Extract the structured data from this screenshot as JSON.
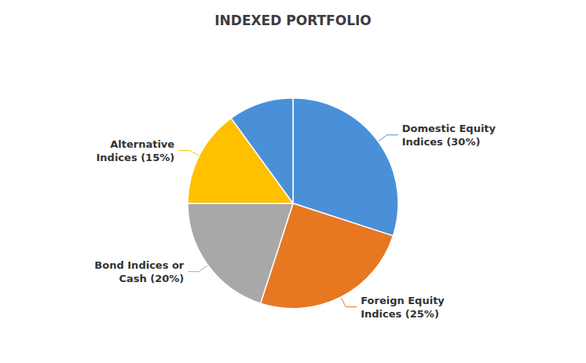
{
  "chart_data": {
    "type": "pie",
    "title": "INDEXED PORTFOLIO",
    "categories": [
      "Domestic Equity\nIndices (30%)",
      "Foreign Equity\nIndices (25%)",
      "Bond Indices or\nCash (20%)",
      "Alternative\nIndices (15%)",
      null
    ],
    "values": [
      30,
      25,
      20,
      15,
      10
    ],
    "colors": [
      "#4A90D9",
      "#E87722",
      "#A8A8A8",
      "#FFC000",
      "#4A90D9"
    ]
  }
}
